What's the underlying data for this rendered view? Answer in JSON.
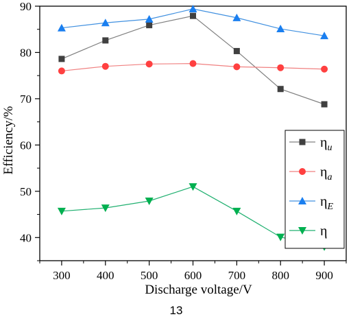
{
  "chart_data": {
    "type": "line",
    "xlabel": "Discharge voltage/V",
    "ylabel": "Efficiency/%",
    "x": [
      300,
      400,
      500,
      600,
      700,
      800,
      900
    ],
    "xlim": [
      250,
      950
    ],
    "ylim": [
      35,
      90
    ],
    "yticks": [
      40,
      50,
      60,
      70,
      80,
      90
    ],
    "grid": false,
    "legend_position": "right",
    "series": [
      {
        "name": "η",
        "sub": "u",
        "color": "#808080",
        "marker_color": "#404040",
        "marker": "square",
        "values": [
          78.6,
          82.6,
          85.9,
          87.9,
          80.3,
          72.1,
          68.8
        ]
      },
      {
        "name": "η",
        "sub": "a",
        "color": "#f08080",
        "marker_color": "#ff4040",
        "marker": "circle",
        "values": [
          76.0,
          77.0,
          77.5,
          77.6,
          76.9,
          76.7,
          76.4
        ]
      },
      {
        "name": "η",
        "sub": "E",
        "color": "#4090e0",
        "marker_color": "#1a7ff0",
        "marker": "triangle-up",
        "values": [
          85.3,
          86.4,
          87.2,
          89.4,
          87.5,
          85.1,
          83.6
        ]
      },
      {
        "name": "η",
        "sub": "",
        "color": "#20b070",
        "marker_color": "#00b050",
        "marker": "triangle-down",
        "values": [
          45.7,
          46.4,
          47.9,
          51.0,
          45.7,
          40.1,
          38.0
        ]
      }
    ]
  },
  "footer": {
    "page_number": "13"
  }
}
